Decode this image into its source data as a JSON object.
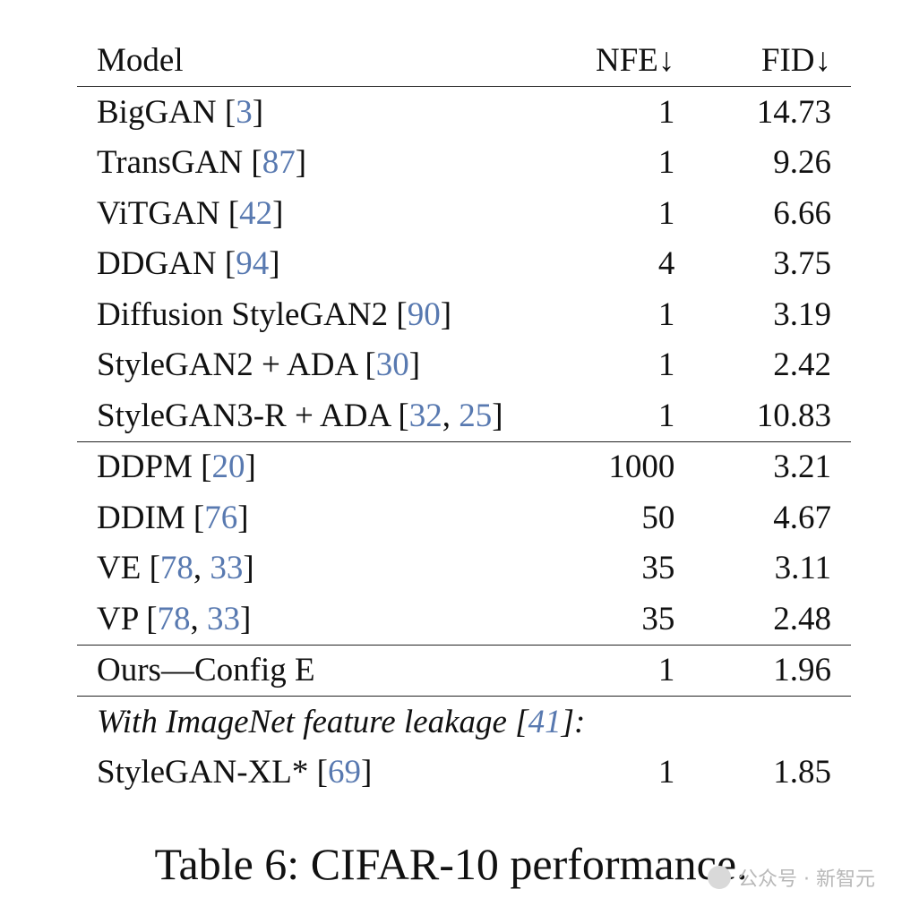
{
  "table": {
    "headers": {
      "model": "Model",
      "nfe": "NFE↓",
      "fid": "FID↓"
    },
    "groups": [
      {
        "rows": [
          {
            "model": "BigGAN",
            "cites": [
              "3"
            ],
            "nfe": "1",
            "fid": "14.73"
          },
          {
            "model": "TransGAN",
            "cites": [
              "87"
            ],
            "nfe": "1",
            "fid": "9.26"
          },
          {
            "model": "ViTGAN",
            "cites": [
              "42"
            ],
            "nfe": "1",
            "fid": "6.66"
          },
          {
            "model": "DDGAN",
            "cites": [
              "94"
            ],
            "nfe": "4",
            "fid": "3.75"
          },
          {
            "model": "Diffusion StyleGAN2",
            "cites": [
              "90"
            ],
            "nfe": "1",
            "fid": "3.19"
          },
          {
            "model": "StyleGAN2 + ADA",
            "cites": [
              "30"
            ],
            "nfe": "1",
            "fid": "2.42"
          },
          {
            "model": "StyleGAN3-R + ADA",
            "cites": [
              "32",
              "25"
            ],
            "nfe": "1",
            "fid": "10.83"
          }
        ]
      },
      {
        "rows": [
          {
            "model": "DDPM",
            "cites": [
              "20"
            ],
            "nfe": "1000",
            "fid": "3.21"
          },
          {
            "model": "DDIM",
            "cites": [
              "76"
            ],
            "nfe": "50",
            "fid": "4.67"
          },
          {
            "model": "VE",
            "cites": [
              "78",
              "33"
            ],
            "nfe": "35",
            "fid": "3.11"
          },
          {
            "model": "VP",
            "cites": [
              "78",
              "33"
            ],
            "nfe": "35",
            "fid": "2.48"
          }
        ]
      },
      {
        "rows": [
          {
            "model": "Ours—Config E",
            "cites": [],
            "nfe": "1",
            "fid": "1.96"
          }
        ]
      }
    ],
    "leakage_note": {
      "text": "With ImageNet feature leakage",
      "cites": [
        "41"
      ],
      "suffix": ":"
    },
    "leakage_rows": [
      {
        "model": "StyleGAN-XL*",
        "cites": [
          "69"
        ],
        "nfe": "1",
        "fid": "1.85"
      }
    ]
  },
  "caption": "Table 6: CIFAR-10 performance.",
  "watermark": "公众号 · 新智元"
}
